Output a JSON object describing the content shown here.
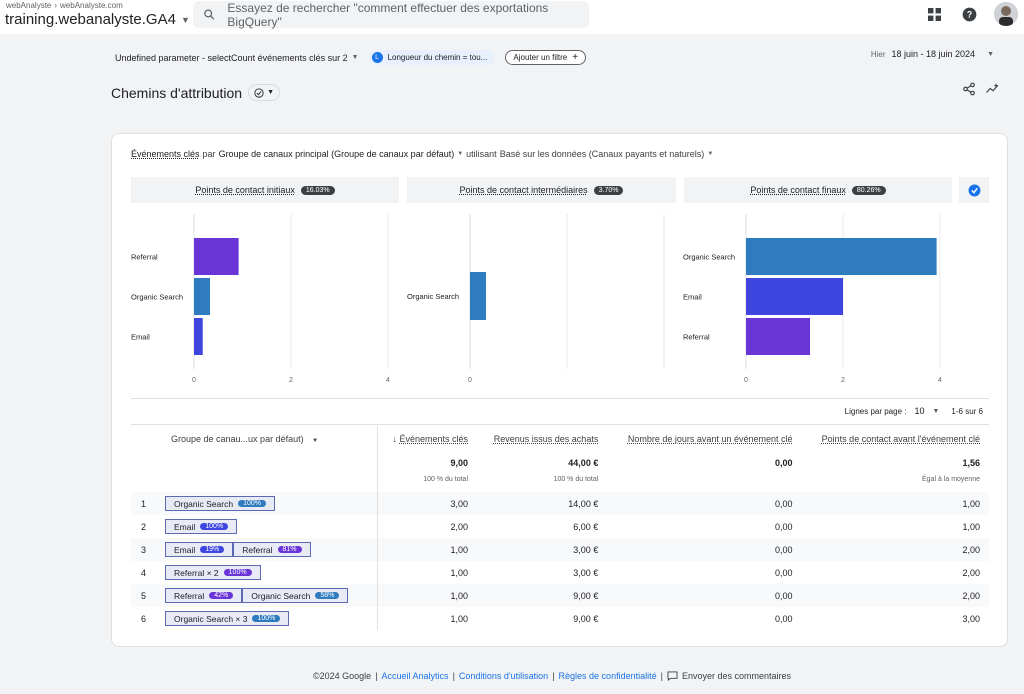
{
  "topbar": {
    "breadcrumb": [
      "webAnalyste",
      "webAnalyste.com"
    ],
    "property": "training.webanalyste.GA4",
    "search_placeholder": "Essayez de rechercher \"comment effectuer des exportations BigQuery\""
  },
  "filterbar": {
    "selector": "Undefined parameter - selectCount événements clés sur 2",
    "chip_badge": "L",
    "chip_label": "Longueur du chemin = tou...",
    "add_filter": "Ajouter un filtre",
    "date_label": "Hier",
    "date_range": "18 juin - 18 juin 2024"
  },
  "report": {
    "title": "Chemins d'attribution"
  },
  "card": {
    "head": {
      "metric": "Événements clés",
      "par": "par",
      "dimension": "Groupe de canaux principal (Groupe de canaux par défaut)",
      "using": "utilisant",
      "model": "Basé sur les données (Canaux payants et naturels)"
    },
    "stages": [
      {
        "label": "Points de contact initiaux",
        "pct": "16.03%"
      },
      {
        "label": "Points de contact intermédiaires",
        "pct": "3.70%"
      },
      {
        "label": "Points de contact finaux",
        "pct": "80.26%"
      }
    ]
  },
  "chart_data": [
    {
      "type": "bar",
      "orientation": "horizontal",
      "categories": [
        "Referral",
        "Organic Search",
        "Email"
      ],
      "values": [
        0.92,
        0.33,
        0.18
      ],
      "colors": [
        "#6a35d6",
        "#2f7bbf",
        "#3f46e0"
      ],
      "xlim": [
        0,
        4
      ],
      "xticks": [
        "0",
        "2",
        "4"
      ]
    },
    {
      "type": "bar",
      "orientation": "horizontal",
      "categories": [
        "Organic Search"
      ],
      "values": [
        0.33
      ],
      "colors": [
        "#2f7bbf"
      ],
      "xlim": [
        0,
        4
      ],
      "xticks": [
        "0"
      ]
    },
    {
      "type": "bar",
      "orientation": "horizontal",
      "categories": [
        "Organic Search",
        "Email",
        "Referral"
      ],
      "values": [
        3.93,
        2.0,
        1.32
      ],
      "colors": [
        "#2f7bbf",
        "#3f46e0",
        "#6a35d6"
      ],
      "xlim": [
        0,
        4
      ],
      "xticks": [
        "0",
        "2",
        "4"
      ]
    }
  ],
  "pager": {
    "rows_label": "Lignes par page :",
    "rows_value": "10",
    "range": "1-6 sur 6"
  },
  "table": {
    "dimension_header": "Groupe de canau...ux par défaut)",
    "headers": [
      "Événements clés",
      "Revenus issus des achats",
      "Nombre de jours avant un événement clé",
      "Points de contact avant l'événement clé"
    ],
    "totals": [
      "9,00",
      "44,00 €",
      "0,00",
      "1,56"
    ],
    "totals_sub": [
      "100 % du total",
      "100 % du total",
      "",
      "Égal à la moyenne"
    ],
    "rows": [
      {
        "idx": "1",
        "path": [
          {
            "name": "Organic Search",
            "pct": "100%",
            "color": "#2f7bbf"
          }
        ],
        "values": [
          "3,00",
          "14,00 €",
          "0,00",
          "1,00"
        ]
      },
      {
        "idx": "2",
        "path": [
          {
            "name": "Email",
            "pct": "100%",
            "color": "#3f46e0"
          }
        ],
        "values": [
          "2,00",
          "6,00 €",
          "0,00",
          "1,00"
        ]
      },
      {
        "idx": "3",
        "path": [
          {
            "name": "Email",
            "pct": "19%",
            "color": "#3f46e0"
          },
          {
            "name": "Referral",
            "pct": "81%",
            "color": "#6a35d6"
          }
        ],
        "values": [
          "1,00",
          "3,00 €",
          "0,00",
          "2,00"
        ]
      },
      {
        "idx": "4",
        "path": [
          {
            "name": "Referral × 2",
            "pct": "100%",
            "color": "#6a35d6"
          }
        ],
        "values": [
          "1,00",
          "3,00 €",
          "0,00",
          "2,00"
        ]
      },
      {
        "idx": "5",
        "path": [
          {
            "name": "Referral",
            "pct": "42%",
            "color": "#6a35d6"
          },
          {
            "name": "Organic Search",
            "pct": "58%",
            "color": "#2f7bbf"
          }
        ],
        "values": [
          "1,00",
          "9,00 €",
          "0,00",
          "2,00"
        ]
      },
      {
        "idx": "6",
        "path": [
          {
            "name": "Organic Search × 3",
            "pct": "100%",
            "color": "#2f7bbf"
          }
        ],
        "values": [
          "1,00",
          "9,00 €",
          "0,00",
          "3,00"
        ]
      }
    ]
  },
  "footer": {
    "copyright": "©2024 Google",
    "links": [
      "Accueil Analytics",
      "Conditions d'utilisation",
      "Règles de confidentialité"
    ],
    "feedback": "Envoyer des commentaires"
  }
}
